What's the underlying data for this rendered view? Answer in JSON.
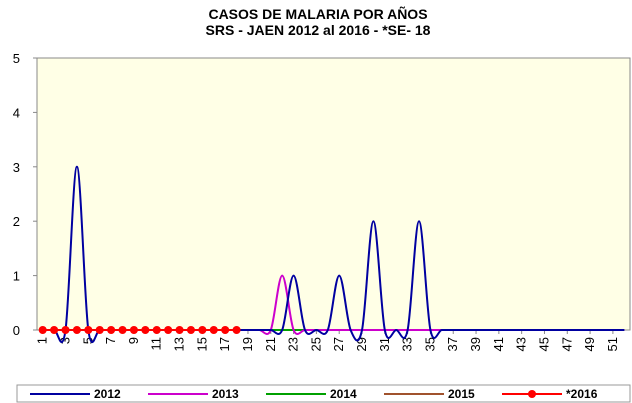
{
  "chart_data": {
    "type": "line",
    "title": "CASOS DE  MALARIA POR AÑOS",
    "subtitle": "SRS - JAEN  2012 al  2016 - *SE- 18",
    "x": [
      1,
      2,
      3,
      4,
      5,
      6,
      7,
      8,
      9,
      10,
      11,
      12,
      13,
      14,
      15,
      16,
      17,
      18,
      19,
      20,
      21,
      22,
      23,
      24,
      25,
      26,
      27,
      28,
      29,
      30,
      31,
      32,
      33,
      34,
      35,
      36,
      37,
      38,
      39,
      40,
      41,
      42,
      43,
      44,
      45,
      46,
      47,
      48,
      49,
      50,
      51,
      52
    ],
    "xlim": [
      0.5,
      52.5
    ],
    "xticks": [
      1,
      3,
      5,
      7,
      9,
      11,
      13,
      15,
      17,
      19,
      21,
      23,
      25,
      27,
      29,
      31,
      33,
      35,
      37,
      39,
      41,
      43,
      45,
      47,
      49,
      51
    ],
    "ylim": [
      0,
      5
    ],
    "yticks": [
      0,
      1,
      2,
      3,
      4,
      5
    ],
    "legend": "bottom",
    "series": [
      {
        "name": "2012",
        "color": "#0000a0",
        "values": [
          0,
          0,
          0,
          3,
          0,
          0,
          0,
          0,
          0,
          0,
          0,
          0,
          0,
          0,
          0,
          0,
          0,
          0,
          0,
          0,
          0,
          0,
          1,
          0,
          0,
          0,
          1,
          0,
          0,
          2,
          0,
          0,
          0,
          2,
          0,
          0,
          0,
          0,
          0,
          0,
          0,
          0,
          0,
          0,
          0,
          0,
          0,
          0,
          0,
          0,
          0,
          0
        ]
      },
      {
        "name": "2013",
        "color": "#cc00cc",
        "values": [
          0,
          0,
          0,
          0,
          0,
          0,
          0,
          0,
          0,
          0,
          0,
          0,
          0,
          0,
          0,
          0,
          0,
          0,
          0,
          0,
          0,
          1,
          0,
          0,
          0,
          0,
          0,
          0,
          0,
          0,
          0,
          0,
          0,
          0,
          0,
          0,
          0,
          0,
          0,
          0,
          0,
          0,
          0,
          0,
          0,
          0,
          0,
          0,
          0,
          0,
          0,
          0
        ]
      },
      {
        "name": "2014",
        "color": "#00a000",
        "values": [
          0,
          0,
          0,
          0,
          0,
          0,
          0,
          0,
          0,
          0,
          0,
          0,
          0,
          0,
          0,
          0,
          0,
          0,
          0,
          0,
          0,
          0,
          0,
          0,
          0,
          0,
          0,
          0,
          0,
          0,
          0,
          0,
          0,
          0,
          0,
          0,
          0,
          0,
          0,
          0,
          0,
          0,
          0,
          0,
          0,
          0,
          0,
          0,
          0,
          0,
          0,
          0
        ]
      },
      {
        "name": "2015",
        "color": "#a0522d",
        "values": [
          0,
          0,
          0,
          0,
          0,
          0,
          0,
          0,
          0,
          0,
          0,
          0,
          0,
          0,
          0,
          0,
          0,
          0,
          0,
          0,
          0,
          0,
          0,
          0,
          0,
          0,
          0,
          0,
          0,
          0,
          0,
          0,
          0,
          0,
          0,
          0,
          0,
          0,
          0,
          0,
          0,
          0,
          0,
          0,
          0,
          0,
          0,
          0,
          0,
          0,
          0,
          0
        ]
      },
      {
        "name": "*2016",
        "color": "#ff0000",
        "markers": true,
        "values": [
          0,
          0,
          0,
          0,
          0,
          0,
          0,
          0,
          0,
          0,
          0,
          0,
          0,
          0,
          0,
          0,
          0,
          0,
          null,
          null,
          null,
          null,
          null,
          null,
          null,
          null,
          null,
          null,
          null,
          null,
          null,
          null,
          null,
          null,
          null,
          null,
          null,
          null,
          null,
          null,
          null,
          null,
          null,
          null,
          null,
          null,
          null,
          null,
          null,
          null,
          null,
          null
        ]
      }
    ]
  }
}
